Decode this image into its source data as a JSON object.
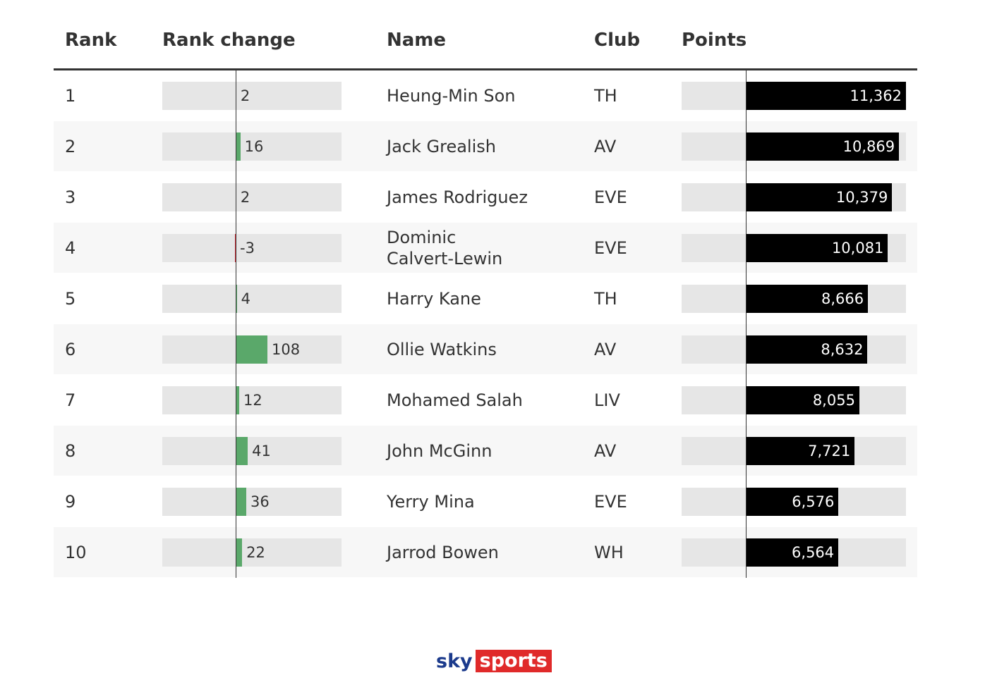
{
  "table": {
    "columns": [
      "Rank",
      "Rank change",
      "Name",
      "Club",
      "Points"
    ],
    "positive_color": "#5aa86a",
    "negative_color": "#c8232c",
    "points_color": "#000000",
    "rows": [
      [
        1,
        2,
        "Heung-Min Son",
        "TH",
        {
          "value": 11362,
          "label": "11,362"
        }
      ],
      [
        2,
        16,
        "Jack Grealish",
        "AV",
        {
          "value": 10869,
          "label": "10,869"
        }
      ],
      [
        3,
        2,
        "James Rodriguez",
        "EVE",
        {
          "value": 10379,
          "label": "10,379"
        }
      ],
      [
        4,
        -3,
        "Dominic Calvert-Lewin",
        "EVE",
        {
          "value": 10081,
          "label": "10,081"
        }
      ],
      [
        5,
        4,
        "Harry Kane",
        "TH",
        {
          "value": 8666,
          "label": "8,666"
        }
      ],
      [
        6,
        108,
        "Ollie Watkins",
        "AV",
        {
          "value": 8632,
          "label": "8,632"
        }
      ],
      [
        7,
        12,
        "Mohamed Salah",
        "LIV",
        {
          "value": 8055,
          "label": "8,055"
        }
      ],
      [
        8,
        41,
        "John McGinn",
        "AV",
        {
          "value": 7721,
          "label": "7,721"
        }
      ],
      [
        9,
        36,
        "Yerry Mina",
        "EVE",
        {
          "value": 6576,
          "label": "6,576"
        }
      ],
      [
        10,
        22,
        "Jarrod Bowen",
        "WH",
        {
          "value": 6564,
          "label": "6,564"
        }
      ]
    ]
  },
  "logo": {
    "sky": "sky",
    "sports": "sports"
  }
}
